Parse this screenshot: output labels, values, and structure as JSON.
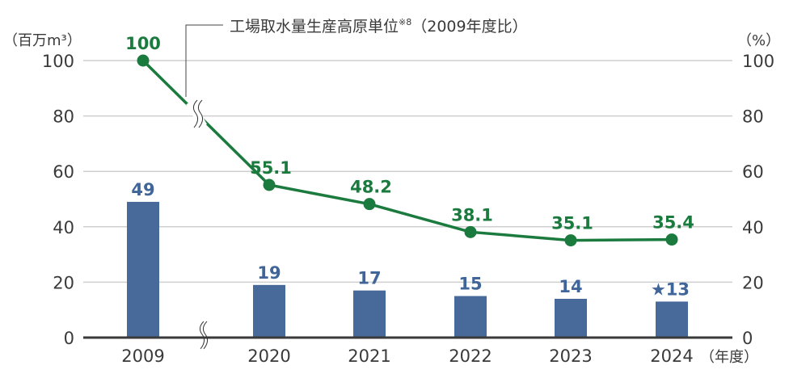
{
  "chart_data": {
    "type": "bar+line",
    "title": "工場取水量生産高原単位",
    "title_note": "※8",
    "title_suffix": "（2009年度比）",
    "left_unit": "（百万m³）",
    "right_unit": "（%）",
    "x_unit": "（年度）",
    "categories": [
      "2009",
      "2020",
      "2021",
      "2022",
      "2023",
      "2024"
    ],
    "left_ticks": [
      "0",
      "20",
      "40",
      "60",
      "80",
      "100"
    ],
    "right_ticks": [
      "0",
      "20",
      "40",
      "60",
      "80",
      "100"
    ],
    "ylim": [
      0,
      100
    ],
    "y2lim": [
      0,
      100
    ],
    "axis_break": "between 2009 and 2020",
    "grid": true,
    "series": [
      {
        "name": "工場取水量",
        "type": "bar",
        "axis": "left",
        "values": [
          49,
          19,
          17,
          15,
          14,
          13
        ],
        "labels": [
          "49",
          "19",
          "17",
          "15",
          "14",
          "★13"
        ],
        "color": "#476a9a"
      },
      {
        "name": "工場取水量生産高原単位（2009年度比）",
        "type": "line",
        "axis": "right",
        "values": [
          100,
          55.1,
          48.2,
          38.1,
          35.1,
          35.4
        ],
        "labels": [
          "100",
          "55.1",
          "48.2",
          "38.1",
          "35.1",
          "35.4"
        ],
        "color": "#1b7a3e"
      }
    ]
  }
}
